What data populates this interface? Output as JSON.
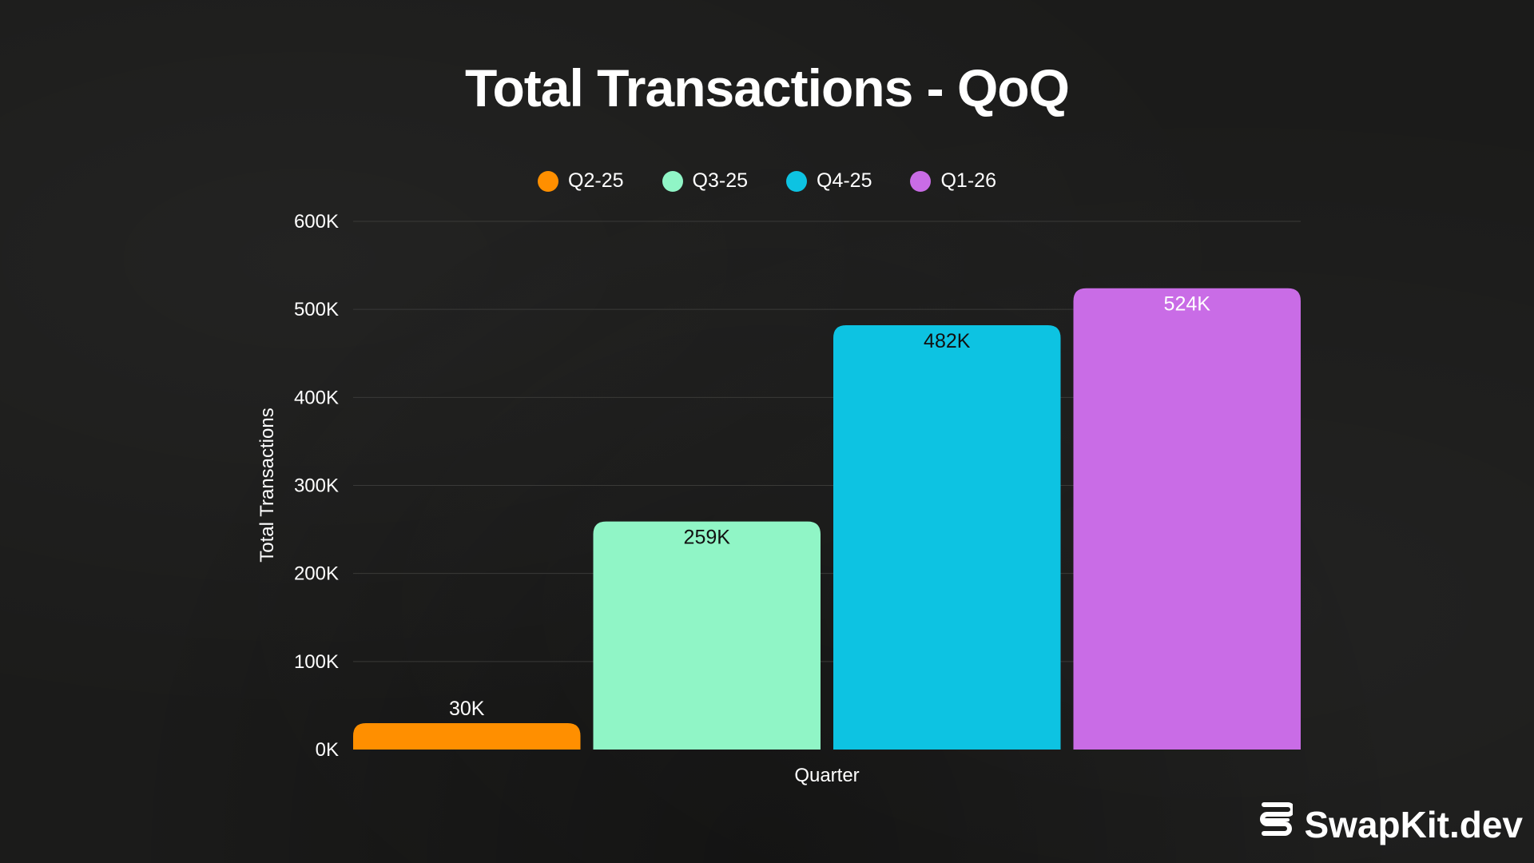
{
  "chart_data": {
    "type": "bar",
    "title": "Total Transactions - QoQ",
    "xlabel": "Quarter",
    "ylabel": "Total Transactions",
    "ylim": [
      0,
      600000
    ],
    "yticks": [
      {
        "value": 0,
        "label": "0K"
      },
      {
        "value": 100000,
        "label": "100K"
      },
      {
        "value": 200000,
        "label": "200K"
      },
      {
        "value": 300000,
        "label": "300K"
      },
      {
        "value": 400000,
        "label": "400K"
      },
      {
        "value": 500000,
        "label": "500K"
      },
      {
        "value": 600000,
        "label": "600K"
      }
    ],
    "grid": true,
    "legend_position": "top-center",
    "series": [
      {
        "name": "Q2-25",
        "value": 30000,
        "label": "30K",
        "color": "#ff8f00"
      },
      {
        "name": "Q3-25",
        "value": 259000,
        "label": "259K",
        "color": "#90f5c6"
      },
      {
        "name": "Q4-25",
        "value": 482000,
        "label": "482K",
        "color": "#0dc3e2"
      },
      {
        "name": "Q1-26",
        "value": 524000,
        "label": "524K",
        "color": "#c96ce6"
      }
    ]
  },
  "brand": {
    "name": "SwapKit.dev",
    "icon": "swapkit-logo-icon"
  }
}
